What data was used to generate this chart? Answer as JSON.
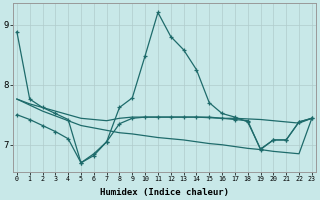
{
  "xlabel": "Humidex (Indice chaleur)",
  "bg_color": "#c8e8e8",
  "line_color": "#1e6b6b",
  "grid_color": "#b0cccc",
  "xlim": [
    -0.3,
    23.3
  ],
  "ylim": [
    6.55,
    9.35
  ],
  "yticks": [
    7,
    8,
    9
  ],
  "xticks": [
    0,
    1,
    2,
    3,
    4,
    5,
    6,
    7,
    8,
    9,
    10,
    11,
    12,
    13,
    14,
    15,
    16,
    17,
    18,
    19,
    20,
    21,
    22,
    23
  ],
  "series": [
    {
      "x": [
        0,
        1,
        2,
        3,
        4,
        5,
        6,
        7,
        8,
        9,
        10,
        11,
        12,
        13,
        14,
        15,
        16,
        17,
        18,
        19,
        20,
        21,
        22,
        23
      ],
      "y": [
        8.88,
        7.76,
        7.62,
        7.52,
        7.42,
        6.7,
        6.85,
        7.05,
        7.62,
        7.78,
        8.48,
        9.2,
        8.8,
        8.58,
        8.25,
        7.7,
        7.52,
        7.46,
        7.38,
        6.93,
        7.08,
        7.08,
        7.38,
        7.44
      ],
      "marker": true
    },
    {
      "x": [
        0,
        1,
        2,
        3,
        4,
        5,
        6,
        7,
        8,
        9,
        10,
        11,
        12,
        13,
        14,
        15,
        16,
        17,
        18,
        19,
        20,
        21,
        22,
        23
      ],
      "y": [
        7.76,
        7.68,
        7.62,
        7.56,
        7.5,
        7.44,
        7.42,
        7.4,
        7.44,
        7.46,
        7.46,
        7.46,
        7.46,
        7.46,
        7.46,
        7.45,
        7.44,
        7.44,
        7.43,
        7.42,
        7.4,
        7.38,
        7.36,
        7.44
      ],
      "marker": false
    },
    {
      "x": [
        0,
        1,
        2,
        3,
        4,
        5,
        6,
        7,
        8,
        9,
        10,
        11,
        12,
        13,
        14,
        15,
        16,
        17,
        18,
        19,
        20,
        21,
        22,
        23
      ],
      "y": [
        7.76,
        7.66,
        7.56,
        7.48,
        7.4,
        7.32,
        7.28,
        7.24,
        7.2,
        7.18,
        7.15,
        7.12,
        7.1,
        7.08,
        7.05,
        7.02,
        7.0,
        6.97,
        6.94,
        6.92,
        6.89,
        6.87,
        6.85,
        7.44
      ],
      "marker": false
    },
    {
      "x": [
        0,
        1,
        2,
        3,
        4,
        5,
        6,
        7,
        8,
        9,
        10,
        11,
        12,
        13,
        14,
        15,
        16,
        17,
        18,
        19,
        20,
        21,
        22,
        23
      ],
      "y": [
        7.5,
        7.42,
        7.32,
        7.22,
        7.1,
        6.7,
        6.82,
        7.05,
        7.35,
        7.44,
        7.46,
        7.46,
        7.46,
        7.46,
        7.46,
        7.46,
        7.44,
        7.42,
        7.4,
        6.92,
        7.08,
        7.08,
        7.38,
        7.44
      ],
      "marker": true
    }
  ]
}
